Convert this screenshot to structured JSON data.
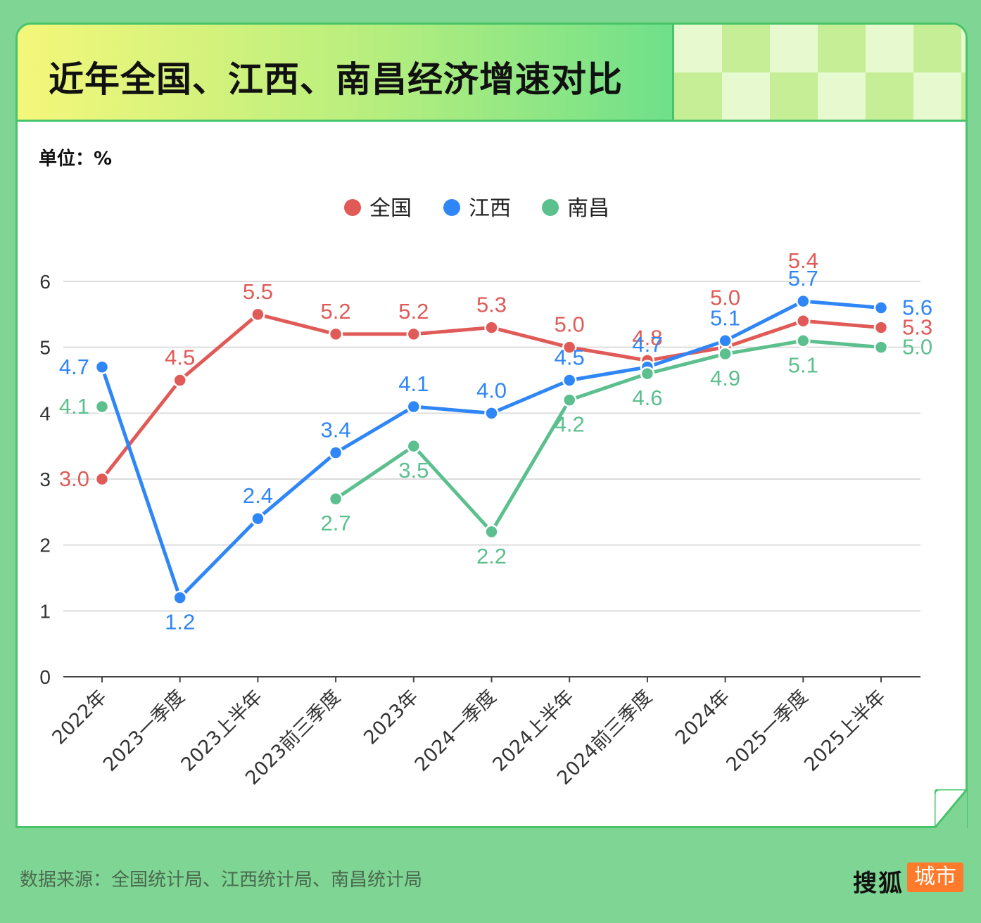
{
  "title": "近年全国、江西、南昌经济增速对比",
  "unit_label": "单位：%",
  "source": "数据来源：全国统计局、江西统计局、南昌统计局",
  "brand": {
    "name": "搜狐",
    "badge": "城市"
  },
  "colors": {
    "national": "#e05a57",
    "jiangxi": "#2f86f6",
    "nanchang": "#5cbf8e",
    "grid": "#dddddd",
    "axis": "#444444"
  },
  "chart_data": {
    "type": "line",
    "ylim": [
      0,
      6
    ],
    "yticks": [
      0,
      1,
      2,
      3,
      4,
      5,
      6
    ],
    "categories": [
      "2022年",
      "2023一季度",
      "2023上半年",
      "2023前三季度",
      "2023年",
      "2024一季度",
      "2024上半年",
      "2024前三季度",
      "2024年",
      "2025一季度",
      "2025上半年"
    ],
    "legend_position": "top-center",
    "grid": true,
    "series": [
      {
        "name": "全国",
        "color": "#e05a57",
        "values": [
          3.0,
          4.5,
          5.5,
          5.2,
          5.2,
          5.3,
          5.0,
          4.8,
          5.0,
          5.4,
          5.3
        ]
      },
      {
        "name": "江西",
        "color": "#2f86f6",
        "values": [
          4.7,
          1.2,
          2.4,
          3.4,
          4.1,
          4.0,
          4.5,
          4.7,
          5.1,
          5.7,
          5.6
        ]
      },
      {
        "name": "南昌",
        "color": "#5cbf8e",
        "values": [
          4.1,
          null,
          null,
          2.7,
          3.5,
          2.2,
          4.2,
          4.6,
          4.9,
          5.1,
          5.0
        ]
      }
    ]
  }
}
